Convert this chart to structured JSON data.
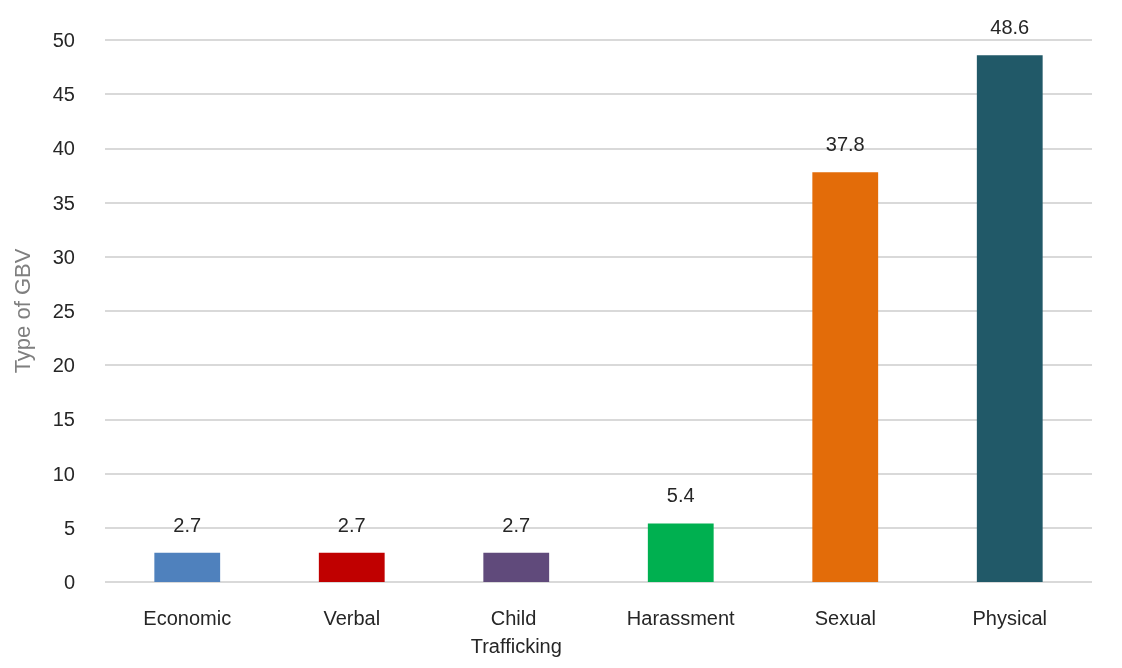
{
  "chart_data": {
    "type": "bar",
    "ylabel": "Type of GBV",
    "categories": [
      "Economic",
      "Verbal",
      "Child Trafficking",
      "Harassment",
      "Sexual",
      "Physical"
    ],
    "values": [
      2.7,
      2.7,
      2.7,
      5.4,
      37.8,
      48.6
    ],
    "colors": [
      "#4f81bd",
      "#c00000",
      "#604a7b",
      "#00b050",
      "#e36c09",
      "#215968"
    ],
    "ylim": [
      0,
      50
    ],
    "yticks": [
      0,
      5,
      10,
      15,
      20,
      25,
      30,
      35,
      40,
      45,
      50
    ],
    "grid": "y",
    "data_labels": true
  }
}
